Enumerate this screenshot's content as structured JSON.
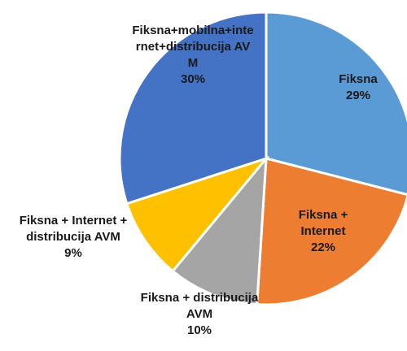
{
  "chart_data": {
    "type": "pie",
    "categories": [
      "Fiksna",
      "Fiksna + Internet",
      "Fiksna + distribucija AVM",
      "Fiksna + Internet + distribucija AVM",
      "Fiksna+mobilna+internet+distribucija AVM"
    ],
    "values": [
      29,
      22,
      10,
      9,
      30
    ],
    "value_labels": [
      "29%",
      "22%",
      "10%",
      "9%",
      "30%"
    ],
    "colors": [
      "#5b9bd5",
      "#ed7d31",
      "#a5a5a5",
      "#ffc000",
      "#4472c4"
    ]
  }
}
